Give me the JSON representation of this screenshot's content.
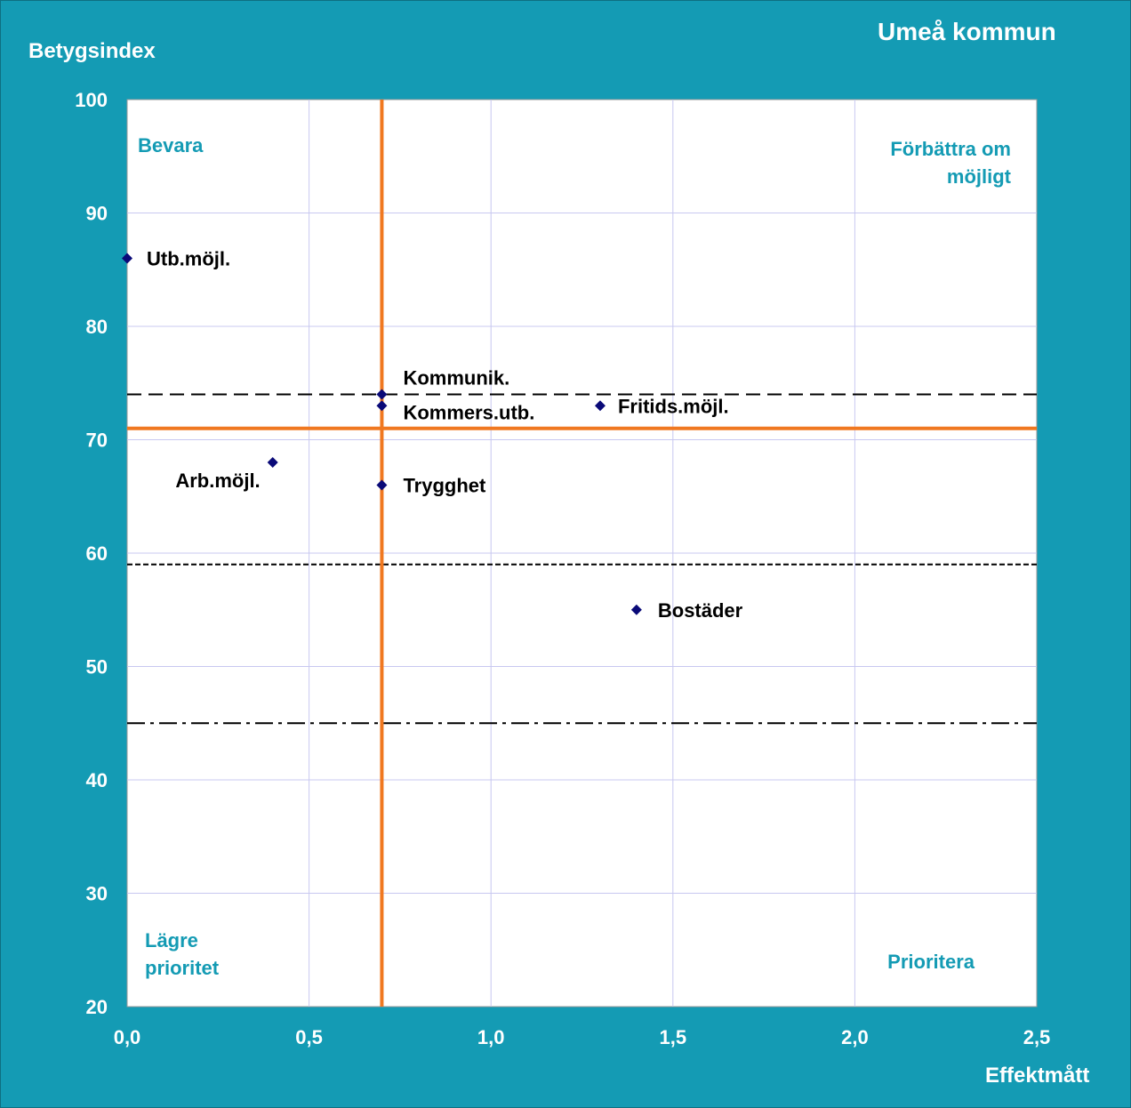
{
  "chart_data": {
    "type": "scatter",
    "title": "Umeå kommun",
    "xlabel": "Effektmått",
    "ylabel": "Betygsindex",
    "xlim": [
      0,
      2.5
    ],
    "ylim": [
      20,
      100
    ],
    "x_ticks": [
      "0,0",
      "0,5",
      "1,0",
      "1,5",
      "2,0",
      "2,5"
    ],
    "y_ticks": [
      "20",
      "30",
      "40",
      "50",
      "60",
      "70",
      "80",
      "90",
      "100"
    ],
    "grid": true,
    "points": [
      {
        "label": "Utb.möjl.",
        "x": 0.0,
        "y": 86
      },
      {
        "label": "Kommunik.",
        "x": 0.7,
        "y": 74
      },
      {
        "label": "Kommers.utb.",
        "x": 0.7,
        "y": 73
      },
      {
        "label": "Fritids.möjl.",
        "x": 1.3,
        "y": 73
      },
      {
        "label": "Arb.möjl.",
        "x": 0.4,
        "y": 68
      },
      {
        "label": "Trygghet",
        "x": 0.7,
        "y": 66
      },
      {
        "label": "Bostäder",
        "x": 1.4,
        "y": 55
      }
    ],
    "quadrant_lines": {
      "x": 0.7,
      "y": 71
    },
    "reference_lines": [
      {
        "y": 74,
        "style": "long-dash"
      },
      {
        "y": 59,
        "style": "short-dash"
      },
      {
        "y": 45,
        "style": "dash-dot"
      }
    ],
    "quadrant_labels": {
      "top_left": "Bevara",
      "top_right": [
        "Förbättra om",
        "möjligt"
      ],
      "bottom_left": [
        "Lägre",
        "prioritet"
      ],
      "bottom_right": "Prioritera"
    },
    "colors": {
      "background": "#149bb4",
      "plot_area": "#ffffff",
      "grid": "#c8c8f0",
      "quadrant_line": "#f07820",
      "marker": "#0a0a78",
      "quadrant_text": "#149bb4"
    }
  }
}
